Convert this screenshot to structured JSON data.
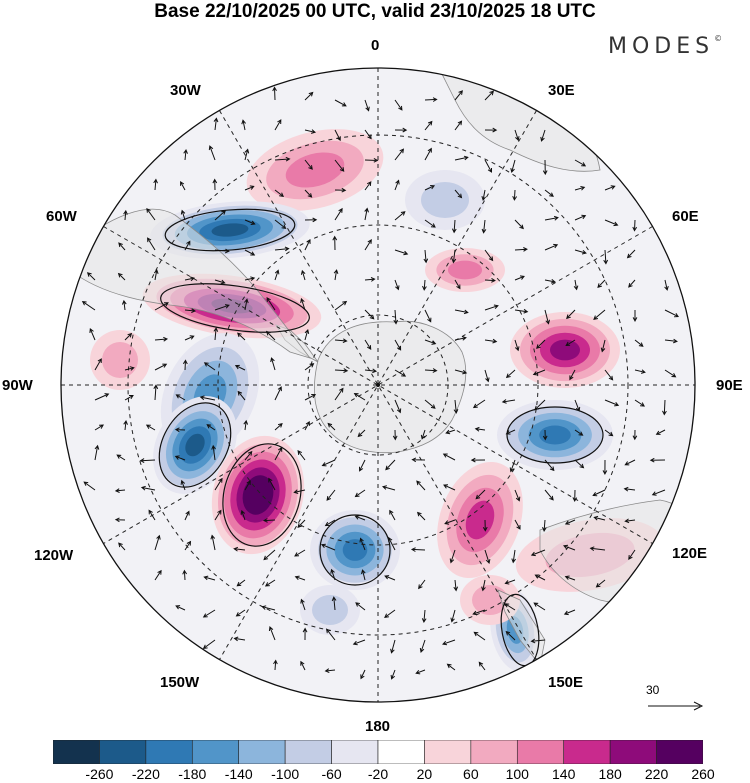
{
  "title": "Base 22/10/2025 00 UTC, valid 23/10/2025 18 UTC",
  "brand": "MODES",
  "brand_mark": "©",
  "longitude_labels": {
    "lon_0": "0",
    "lon_30e": "30E",
    "lon_60e": "60E",
    "lon_90e": "90E",
    "lon_120e": "120E",
    "lon_150e": "150E",
    "lon_180": "180",
    "lon_150w": "150W",
    "lon_120w": "120W",
    "lon_90w": "90W",
    "lon_60w": "60W",
    "lon_30w": "30W"
  },
  "reference_vector": "30",
  "colorbar": {
    "ticks": [
      "-260",
      "-220",
      "-180",
      "-140",
      "-100",
      "-60",
      "-20",
      "20",
      "60",
      "100",
      "140",
      "180",
      "220",
      "260"
    ],
    "colors": [
      "#13324e",
      "#1c5a8a",
      "#2f79b4",
      "#5195c9",
      "#8cb5dc",
      "#c3cde5",
      "#e6e6f1",
      "#ffffff",
      "#f8d4da",
      "#f2aac0",
      "#e97aa8",
      "#c92a8d",
      "#8e0b7a",
      "#550060"
    ]
  },
  "anomalies": [
    {
      "value": 120,
      "name": "anomaly-positive-south-atlantic"
    },
    {
      "value": -220,
      "name": "anomaly-negative-drake-passage"
    },
    {
      "value": 220,
      "name": "anomaly-positive-south-america"
    },
    {
      "value": -140,
      "name": "anomaly-negative-west-atlantic"
    },
    {
      "value": 60,
      "name": "anomaly-positive-weddell"
    },
    {
      "value": 100,
      "name": "anomaly-positive-east-atlantic"
    },
    {
      "value": 180,
      "name": "anomaly-positive-indian-ocean"
    },
    {
      "value": -200,
      "name": "anomaly-negative-south-indian"
    },
    {
      "value": -220,
      "name": "anomaly-negative-amundsen"
    },
    {
      "value": 260,
      "name": "anomaly-positive-ross-sea"
    },
    {
      "value": -180,
      "name": "anomaly-negative-south-pacific"
    },
    {
      "value": 140,
      "name": "anomaly-positive-antarctic-coast-east"
    },
    {
      "value": 60,
      "name": "anomaly-positive-australia"
    },
    {
      "value": -160,
      "name": "anomaly-negative-tasman"
    },
    {
      "value": 60,
      "name": "anomaly-positive-west-pacific"
    },
    {
      "value": -60,
      "name": "anomaly-negative-pacific-edge"
    },
    {
      "value": -60,
      "name": "anomaly-negative-south-central-pacific"
    }
  ]
}
